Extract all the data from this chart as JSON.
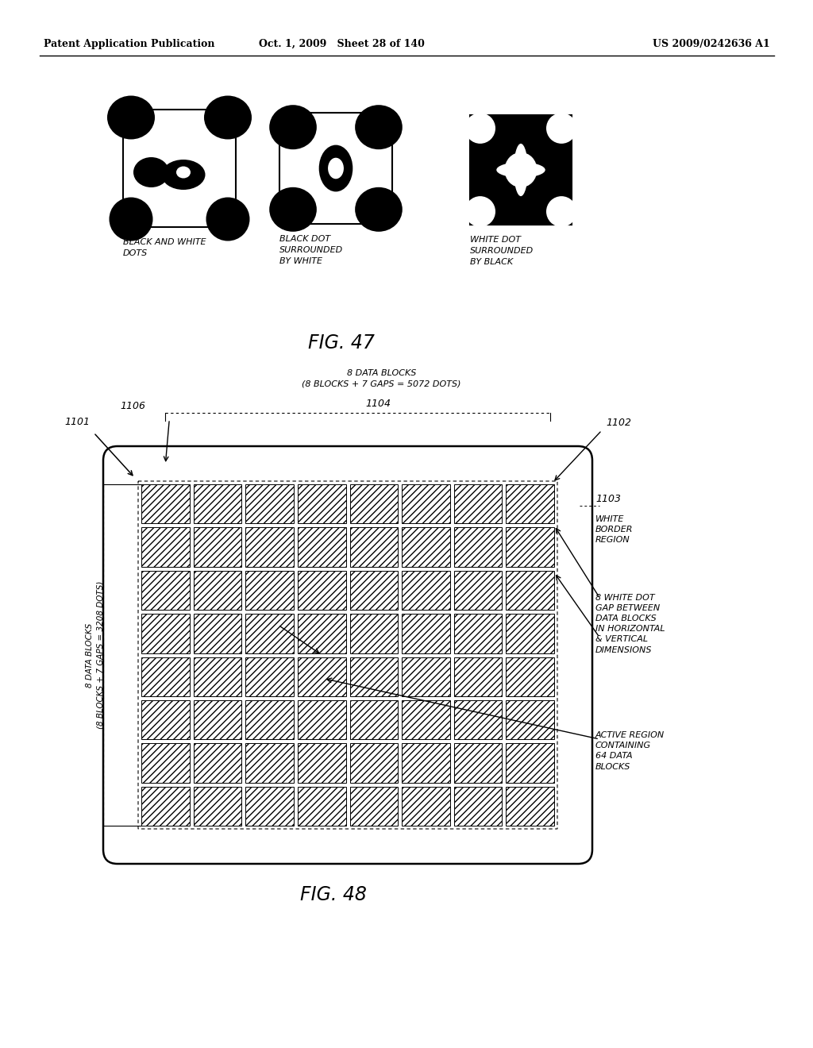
{
  "header_left": "Patent Application Publication",
  "header_center": "Oct. 1, 2009   Sheet 28 of 140",
  "header_right": "US 2009/0242636 A1",
  "fig47_label": "FIG. 47",
  "fig48_label": "FIG. 48",
  "img1_label": "BLACK AND WHITE\nDOTS",
  "img2_label": "BLACK DOT\nSURROUNDED\nBY WHITE",
  "img3_label": "WHITE DOT\nSURROUNDED\nBY BLACK",
  "ref_1101": "1101",
  "ref_1102": "1102",
  "ref_1103": "1103",
  "ref_1104": "1104",
  "ref_1106": "1106",
  "label_top": "8 DATA BLOCKS\n(8 BLOCKS + 7 GAPS = 5072 DOTS)",
  "label_left_line1": "8 DATA BLOCKS",
  "label_left_line2": "(8 BLOCKS + 7 GAPS = 3208 DOTS)",
  "label_white_border": "WHITE\nBORDER\nREGION",
  "label_gap": "8 WHITE DOT\nGAP BETWEEN\nDATA BLOCKS\nIN HORIZONTAL\n& VERTICAL\nDIMENSIONS",
  "label_active": "ACTIVE REGION\nCONTAINING\n64 DATA\nBLOCKS",
  "bg_color": "#ffffff",
  "grid_rows": 8,
  "grid_cols": 8
}
